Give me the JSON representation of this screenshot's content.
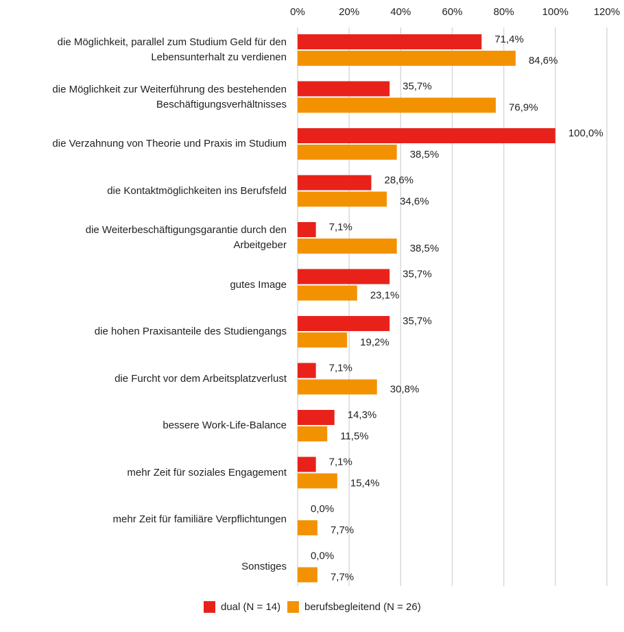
{
  "chart_data": {
    "type": "bar",
    "orientation": "horizontal",
    "categories": [
      "die Möglichkeit, parallel zum Studium Geld für den\nLebensunterhalt zu verdienen",
      "die Möglichkeit zur Weiterführung des bestehenden\nBeschäftigungsverhältnisses",
      "die Verzahnung von Theorie und Praxis im Studium",
      "die Kontaktmöglichkeiten ins Berufsfeld",
      "die Weiterbeschäftigungsgarantie durch den\nArbeitgeber",
      "gutes Image",
      "die hohen Praxisanteile des Studiengangs",
      "die Furcht vor dem Arbeitsplatzverlust",
      "bessere Work-Life-Balance",
      "mehr Zeit für soziales Engagement",
      "mehr Zeit für familiäre Verpflichtungen",
      "Sonstiges"
    ],
    "series": [
      {
        "name": "dual (N = 14)",
        "color": "#e8221b",
        "values": [
          71.4,
          35.7,
          100.0,
          28.6,
          7.1,
          35.7,
          35.7,
          7.1,
          14.3,
          7.1,
          0.0,
          0.0
        ],
        "value_labels": [
          "71,4%",
          "35,7%",
          "100,0%",
          "28,6%",
          "7,1%",
          "35,7%",
          "35,7%",
          "7,1%",
          "14,3%",
          "7,1%",
          "0,0%",
          "0,0%"
        ]
      },
      {
        "name": "berufsbegleitend (N = 26)",
        "color": "#f39200",
        "values": [
          84.6,
          76.9,
          38.5,
          34.6,
          38.5,
          23.1,
          19.2,
          30.8,
          11.5,
          15.4,
          7.7,
          7.7
        ],
        "value_labels": [
          "84,6%",
          "76,9%",
          "38,5%",
          "34,6%",
          "38,5%",
          "23,1%",
          "19,2%",
          "30,8%",
          "11,5%",
          "15,4%",
          "7,7%",
          "7,7%"
        ]
      }
    ],
    "xlim": [
      0,
      120
    ],
    "xticks": [
      {
        "value": 0,
        "label": "0%"
      },
      {
        "value": 20,
        "label": "20%"
      },
      {
        "value": 40,
        "label": "40%"
      },
      {
        "value": 60,
        "label": "60%"
      },
      {
        "value": 80,
        "label": "80%"
      },
      {
        "value": 100,
        "label": "100%"
      },
      {
        "value": 120,
        "label": "120%"
      }
    ],
    "grid": true,
    "legend": "bottom"
  }
}
